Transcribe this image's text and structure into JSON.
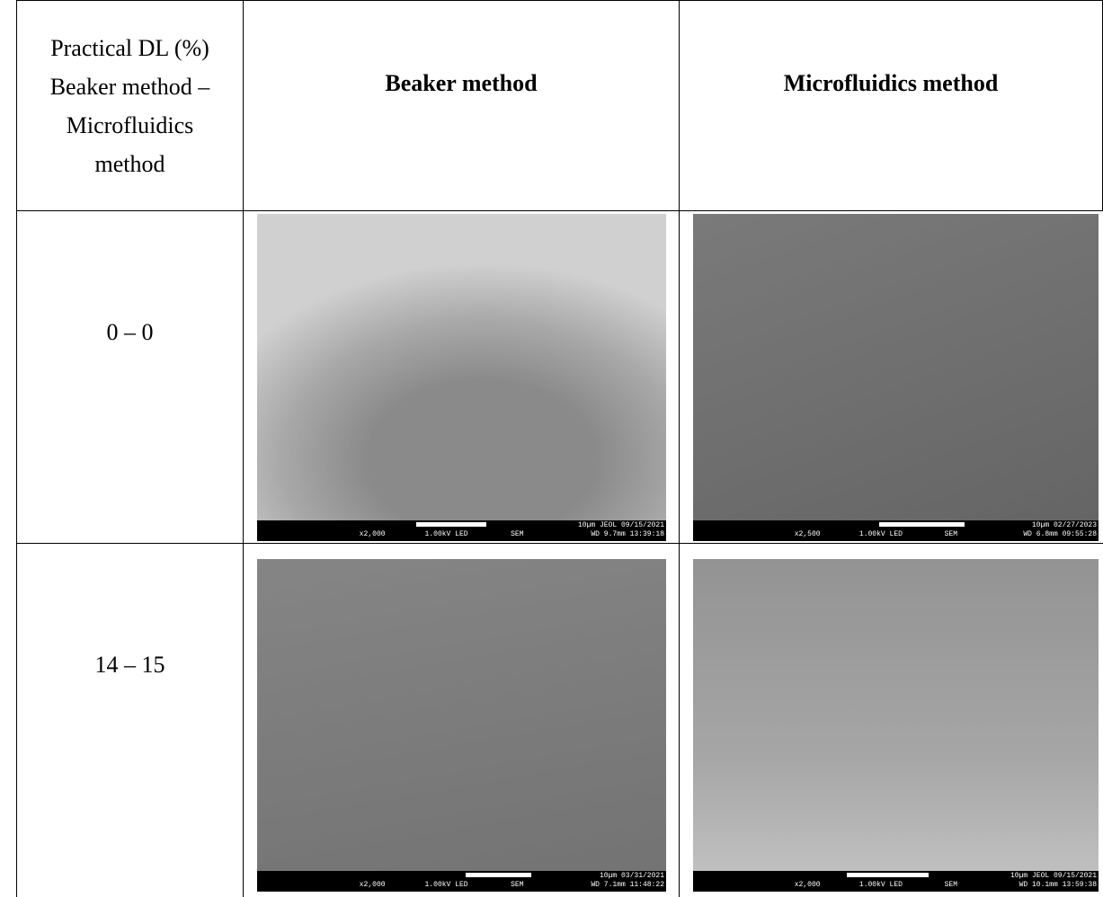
{
  "table": {
    "header": {
      "col0_lines": [
        "Practical DL (%)",
        "Beaker method –",
        "Microfluidics",
        "method"
      ],
      "col1": "Beaker method",
      "col2": "Microfluidics method"
    },
    "rows": [
      {
        "label": "0 – 0",
        "beaker": {
          "mag": "x2,000",
          "kv": "1.00kV LED",
          "mode": "SEM",
          "top": "10µm  JEOL    09/15/2021",
          "bottom": "WD 9.7mm  13:39:18"
        },
        "microfluidics": {
          "mag": "x2,500",
          "kv": "1.00kV LED",
          "mode": "SEM",
          "top": "10µm  02/27/2023",
          "bottom": "WD 6.8mm  09:55:28"
        }
      },
      {
        "label": "14 – 15",
        "beaker": {
          "mag": "x2,000",
          "kv": "1.00kV LED",
          "mode": "SEM",
          "top": "10µm  03/31/2021",
          "bottom": "WD 7.1mm  11:48:22"
        },
        "microfluidics": {
          "mag": "x2,000",
          "kv": "1.00kV LED",
          "mode": "SEM",
          "top": "10µm  JEOL    09/15/2021",
          "bottom": "WD 10.1mm 13:59:38"
        }
      }
    ]
  }
}
